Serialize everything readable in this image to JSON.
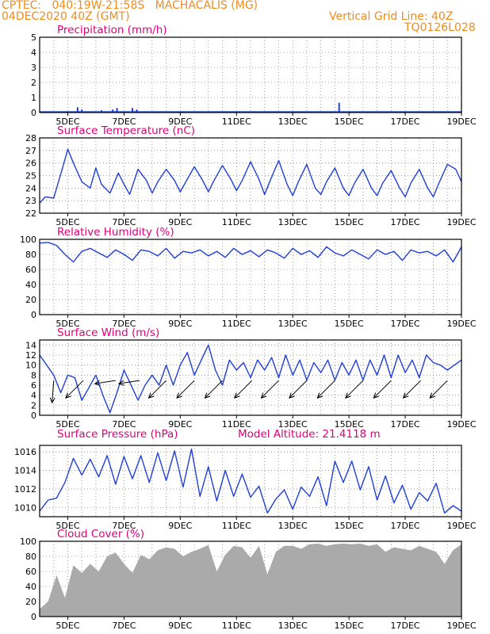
{
  "header": {
    "line1": "CPTEC:   040:19W-21:58S   MACHACALIS (MG)",
    "line2": "04DEC2020 40Z (GMT)",
    "right1": "Vertical Grid Line: 40Z",
    "right2": "TQ0126L028"
  },
  "colors": {
    "header": "#f08c1a",
    "title": "#e0007a",
    "line": "#1f3fd8",
    "cloud": "#aaaaaa"
  },
  "x_ticks": [
    "5DEC",
    "7DEC",
    "9DEC",
    "11DEC",
    "13DEC",
    "15DEC",
    "17DEC",
    "19DEC"
  ],
  "chart_data": [
    {
      "type": "bar",
      "title": "Precipitation (mm/h)",
      "ylim": [
        0,
        5
      ],
      "yticks": [
        0,
        1,
        2,
        3,
        4,
        5
      ],
      "spikes": [
        {
          "x": 1.35,
          "y": 0.35
        },
        {
          "x": 1.5,
          "y": 0.2
        },
        {
          "x": 2.2,
          "y": 0.15
        },
        {
          "x": 2.6,
          "y": 0.2
        },
        {
          "x": 2.75,
          "y": 0.3
        },
        {
          "x": 3.3,
          "y": 0.3
        },
        {
          "x": 3.45,
          "y": 0.2
        },
        {
          "x": 10.65,
          "y": 0.65
        }
      ]
    },
    {
      "type": "line",
      "title": "Surface Temperature (nC)",
      "ylim": [
        22,
        28
      ],
      "yticks": [
        22,
        23,
        24,
        25,
        26,
        27,
        28
      ],
      "x": [
        0,
        0.2,
        0.5,
        0.8,
        1.0,
        1.2,
        1.5,
        1.8,
        2.0,
        2.2,
        2.5,
        2.8,
        3.0,
        3.2,
        3.5,
        3.8,
        4.0,
        4.2,
        4.5,
        4.8,
        5.0,
        5.2,
        5.5,
        5.8,
        6.0,
        6.2,
        6.5,
        6.8,
        7.0,
        7.2,
        7.5,
        7.8,
        8.0,
        8.2,
        8.5,
        8.8,
        9.0,
        9.2,
        9.5,
        9.8,
        10.0,
        10.2,
        10.5,
        10.8,
        11.0,
        11.2,
        11.5,
        11.8,
        12.0,
        12.2,
        12.5,
        12.8,
        13.0,
        13.2,
        13.5,
        13.8,
        14.0,
        14.2,
        14.5,
        14.8,
        15.0
      ],
      "y": [
        22.8,
        23.3,
        23.2,
        25.5,
        27.1,
        26.0,
        24.5,
        24.0,
        25.6,
        24.3,
        23.6,
        25.2,
        24.3,
        23.5,
        25.5,
        24.6,
        23.6,
        24.5,
        25.5,
        24.6,
        23.7,
        24.5,
        25.7,
        24.6,
        23.7,
        24.6,
        25.8,
        24.7,
        23.8,
        24.6,
        26.1,
        24.7,
        23.5,
        24.6,
        26.2,
        24.3,
        23.4,
        24.5,
        25.9,
        24.0,
        23.5,
        24.5,
        25.6,
        24.0,
        23.4,
        24.4,
        25.5,
        24.0,
        23.4,
        24.4,
        25.4,
        24.0,
        23.3,
        24.4,
        25.5,
        24.0,
        23.3,
        24.4,
        25.9,
        25.5,
        24.5
      ]
    },
    {
      "type": "line",
      "title": "Relative Humidity (%)",
      "ylim": [
        0,
        100
      ],
      "yticks": [
        0,
        20,
        40,
        60,
        80,
        100
      ],
      "x": [
        0,
        0.3,
        0.6,
        0.9,
        1.2,
        1.5,
        1.8,
        2.1,
        2.4,
        2.7,
        3.0,
        3.3,
        3.6,
        3.9,
        4.2,
        4.5,
        4.8,
        5.1,
        5.4,
        5.7,
        6.0,
        6.3,
        6.6,
        6.9,
        7.2,
        7.5,
        7.8,
        8.1,
        8.4,
        8.7,
        9.0,
        9.3,
        9.6,
        9.9,
        10.2,
        10.5,
        10.8,
        11.1,
        11.4,
        11.7,
        12.0,
        12.3,
        12.6,
        12.9,
        13.2,
        13.5,
        13.8,
        14.1,
        14.4,
        14.7,
        15.0
      ],
      "y": [
        95,
        96,
        92,
        80,
        70,
        84,
        88,
        82,
        76,
        86,
        80,
        72,
        86,
        84,
        78,
        88,
        75,
        84,
        82,
        86,
        78,
        84,
        76,
        88,
        80,
        85,
        77,
        86,
        82,
        75,
        88,
        80,
        85,
        76,
        90,
        82,
        78,
        86,
        80,
        74,
        86,
        80,
        84,
        72,
        86,
        82,
        84,
        78,
        86,
        70,
        90
      ]
    },
    {
      "type": "line",
      "title": "Surface Wind (m/s)",
      "ylim": [
        0,
        15
      ],
      "yticks": [
        0,
        2,
        4,
        6,
        8,
        10,
        12,
        14
      ],
      "x": [
        0,
        0.25,
        0.5,
        0.75,
        1.0,
        1.25,
        1.5,
        1.75,
        2.0,
        2.25,
        2.5,
        2.75,
        3.0,
        3.25,
        3.5,
        3.75,
        4.0,
        4.25,
        4.5,
        4.75,
        5.0,
        5.25,
        5.5,
        5.75,
        6.0,
        6.25,
        6.5,
        6.75,
        7.0,
        7.25,
        7.5,
        7.75,
        8.0,
        8.25,
        8.5,
        8.75,
        9.0,
        9.25,
        9.5,
        9.75,
        10.0,
        10.25,
        10.5,
        10.75,
        11.0,
        11.25,
        11.5,
        11.75,
        12.0,
        12.25,
        12.5,
        12.75,
        13.0,
        13.25,
        13.5,
        13.75,
        14.0,
        14.25,
        14.5,
        14.75,
        15.0
      ],
      "y": [
        12.0,
        10.0,
        8.0,
        4.5,
        8.0,
        7.5,
        3.0,
        5.5,
        8.0,
        4.0,
        0.5,
        4.5,
        9.0,
        6.0,
        3.0,
        6.0,
        8.0,
        6.0,
        10.0,
        6.0,
        10.0,
        12.5,
        8.0,
        11.0,
        14.0,
        9.0,
        6.0,
        11.0,
        9.0,
        10.5,
        7.5,
        11.0,
        9.0,
        11.5,
        7.5,
        12.0,
        8.0,
        11.0,
        7.0,
        10.5,
        8.5,
        11.0,
        7.0,
        10.5,
        8.0,
        11.0,
        7.0,
        11.0,
        8.0,
        12.0,
        7.5,
        12.0,
        8.5,
        11.0,
        7.5,
        12.0,
        10.5,
        10.0,
        9.0,
        10.0,
        11.0
      ],
      "barbs": [
        {
          "x": 0.5,
          "dir": "down"
        },
        {
          "x": 1.55,
          "dir": "down-left"
        },
        {
          "x": 2.7,
          "dir": "left"
        },
        {
          "x": 3.55,
          "dir": "left"
        },
        {
          "x": 4.5,
          "dir": "down-left"
        },
        {
          "x": 5.5,
          "dir": "down-left"
        },
        {
          "x": 6.5,
          "dir": "down-left"
        },
        {
          "x": 7.55,
          "dir": "down-left"
        },
        {
          "x": 8.5,
          "dir": "down-left"
        },
        {
          "x": 9.5,
          "dir": "down-left"
        },
        {
          "x": 10.5,
          "dir": "down-left"
        },
        {
          "x": 11.5,
          "dir": "down-left"
        },
        {
          "x": 12.5,
          "dir": "down-left"
        },
        {
          "x": 13.55,
          "dir": "down-left"
        },
        {
          "x": 14.5,
          "dir": "down-left"
        }
      ]
    },
    {
      "type": "line",
      "title": "Surface Pressure (hPa)",
      "annotation": "Model Altitude: 21.4118 m",
      "ylim": [
        1009,
        1016.7
      ],
      "yticks": [
        1010,
        1012,
        1014,
        1016
      ],
      "x": [
        0,
        0.3,
        0.6,
        0.9,
        1.2,
        1.5,
        1.8,
        2.1,
        2.4,
        2.7,
        3.0,
        3.3,
        3.6,
        3.9,
        4.2,
        4.5,
        4.8,
        5.1,
        5.4,
        5.7,
        6.0,
        6.3,
        6.6,
        6.9,
        7.2,
        7.5,
        7.8,
        8.1,
        8.4,
        8.7,
        9.0,
        9.3,
        9.6,
        9.9,
        10.2,
        10.5,
        10.8,
        11.1,
        11.4,
        11.7,
        12.0,
        12.3,
        12.6,
        12.9,
        13.2,
        13.5,
        13.8,
        14.1,
        14.4,
        14.7,
        15.0
      ],
      "y": [
        1009.6,
        1010.8,
        1011.0,
        1012.7,
        1015.3,
        1013.5,
        1015.2,
        1013.3,
        1015.6,
        1012.5,
        1015.5,
        1013.1,
        1015.6,
        1012.7,
        1015.9,
        1012.9,
        1016.1,
        1012.2,
        1016.3,
        1011.2,
        1014.4,
        1010.7,
        1014.0,
        1011.2,
        1013.6,
        1011.1,
        1012.3,
        1009.4,
        1010.9,
        1011.9,
        1009.8,
        1012.2,
        1011.2,
        1013.3,
        1010.2,
        1015.0,
        1012.7,
        1015.0,
        1011.9,
        1014.4,
        1010.8,
        1013.4,
        1010.5,
        1012.4,
        1009.8,
        1011.6,
        1010.7,
        1012.6,
        1009.4,
        1010.2,
        1009.6
      ]
    },
    {
      "type": "area",
      "title": "Cloud Cover (%)",
      "ylim": [
        0,
        100
      ],
      "yticks": [
        0,
        20,
        40,
        60,
        80,
        100
      ],
      "x": [
        0,
        0.3,
        0.6,
        0.9,
        1.2,
        1.5,
        1.8,
        2.1,
        2.4,
        2.7,
        3.0,
        3.3,
        3.6,
        3.9,
        4.2,
        4.5,
        4.8,
        5.1,
        5.4,
        5.7,
        6.0,
        6.3,
        6.6,
        6.9,
        7.2,
        7.5,
        7.8,
        8.1,
        8.4,
        8.7,
        9.0,
        9.3,
        9.6,
        9.9,
        10.2,
        10.5,
        10.8,
        11.1,
        11.4,
        11.7,
        12.0,
        12.3,
        12.6,
        12.9,
        13.2,
        13.5,
        13.8,
        14.1,
        14.4,
        14.7,
        15.0
      ],
      "y": [
        10,
        20,
        55,
        25,
        68,
        58,
        70,
        60,
        80,
        85,
        70,
        58,
        82,
        76,
        88,
        92,
        90,
        80,
        86,
        90,
        95,
        60,
        82,
        94,
        92,
        78,
        94,
        56,
        86,
        94,
        94,
        90,
        96,
        97,
        94,
        96,
        97,
        96,
        97,
        94,
        96,
        86,
        92,
        90,
        88,
        94,
        90,
        86,
        70,
        88,
        96
      ]
    }
  ]
}
